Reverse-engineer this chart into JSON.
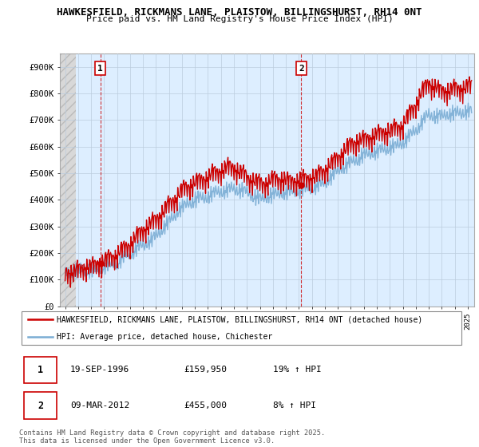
{
  "title1": "HAWKESFIELD, RICKMANS LANE, PLAISTOW, BILLINGSHURST, RH14 0NT",
  "title2": "Price paid vs. HM Land Registry's House Price Index (HPI)",
  "ylim": [
    0,
    950000
  ],
  "yticks": [
    0,
    100000,
    200000,
    300000,
    400000,
    500000,
    600000,
    700000,
    800000,
    900000
  ],
  "ytick_labels": [
    "£0",
    "£100K",
    "£200K",
    "£300K",
    "£400K",
    "£500K",
    "£600K",
    "£700K",
    "£800K",
    "£900K"
  ],
  "xlim_start": 1993.6,
  "xlim_end": 2025.5,
  "sale1_x": 1996.72,
  "sale1_y": 159950,
  "sale1_label": "1",
  "sale2_x": 2012.19,
  "sale2_y": 455000,
  "sale2_label": "2",
  "vline1_x": 1996.72,
  "vline2_x": 2012.19,
  "legend_line1": "HAWKESFIELD, RICKMANS LANE, PLAISTOW, BILLINGSHURST, RH14 0NT (detached house)",
  "legend_line2": "HPI: Average price, detached house, Chichester",
  "table_row1": [
    "1",
    "19-SEP-1996",
    "£159,950",
    "19% ↑ HPI"
  ],
  "table_row2": [
    "2",
    "09-MAR-2012",
    "£455,000",
    "8% ↑ HPI"
  ],
  "footer": "Contains HM Land Registry data © Crown copyright and database right 2025.\nThis data is licensed under the Open Government Licence v3.0.",
  "price_color": "#cc0000",
  "hpi_color": "#7aadd4",
  "chart_bg": "#ddeeff",
  "hatch_bg": "#e8e8e8",
  "grid_color": "#bbccdd"
}
